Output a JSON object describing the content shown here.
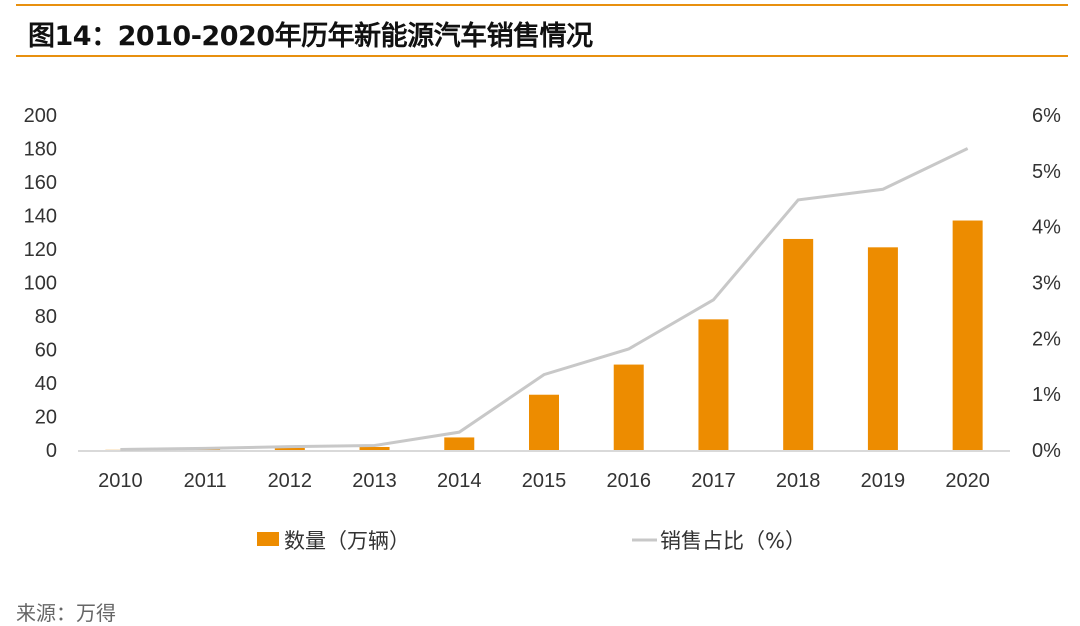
{
  "title": "图14：2010-2020年历年新能源汽车销售情况",
  "source": "来源：万得",
  "colors": {
    "bar": "#ed8c00",
    "line": "#c8c8c8",
    "accent": "#e8900f"
  },
  "chart_data": {
    "type": "bar",
    "categories": [
      "2010",
      "2011",
      "2012",
      "2013",
      "2014",
      "2015",
      "2016",
      "2017",
      "2018",
      "2019",
      "2020"
    ],
    "series": [
      {
        "name": "数量（万辆）",
        "type": "bar",
        "axis": "left",
        "values": [
          0.1,
          0.5,
          1.3,
          1.8,
          7.5,
          33,
          51,
          78,
          126,
          121,
          137
        ]
      },
      {
        "name": "销售占比（%）",
        "type": "line",
        "axis": "right",
        "values": [
          0.01,
          0.03,
          0.06,
          0.08,
          0.32,
          1.35,
          1.81,
          2.69,
          4.48,
          4.67,
          5.4
        ]
      }
    ],
    "ylim_left": [
      0,
      200
    ],
    "yticks_left": [
      "0",
      "20",
      "40",
      "60",
      "80",
      "100",
      "120",
      "140",
      "160",
      "180",
      "200"
    ],
    "ylim_right": [
      0,
      6
    ],
    "yticks_right": [
      "0%",
      "1%",
      "2%",
      "3%",
      "4%",
      "5%",
      "6%"
    ],
    "legend_position": "bottom",
    "grid": false
  }
}
